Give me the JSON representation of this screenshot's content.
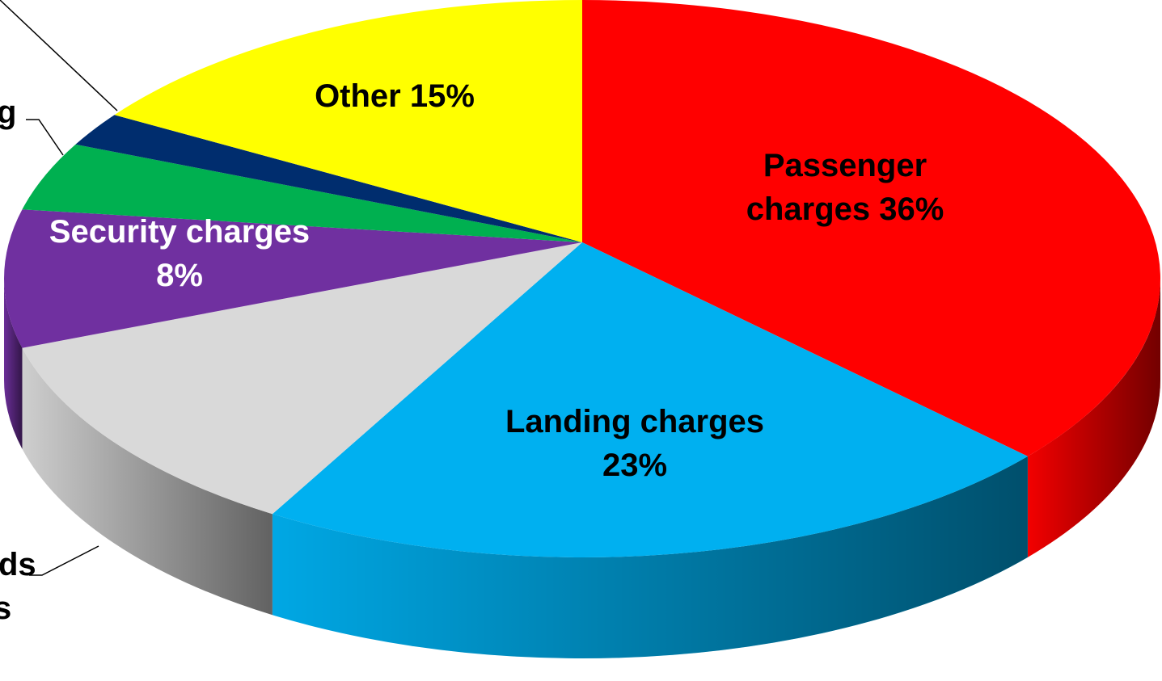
{
  "chart_data": {
    "type": "pie3d",
    "labels": [
      [
        "Passenger",
        "charges 36%"
      ],
      [
        "Landing charges",
        "23%"
      ],
      [
        "ds",
        "s"
      ],
      [
        "Security charges",
        "8%"
      ],
      [
        "g"
      ],
      null,
      [
        "Other 15%"
      ]
    ],
    "values": [
      36,
      23,
      12,
      8,
      4,
      2,
      15
    ],
    "colors": [
      "#ff0000",
      "#00b0f0",
      "#d9d9d9",
      "#7030a0",
      "#00b050",
      "#002d6e",
      "#ffff00"
    ]
  }
}
